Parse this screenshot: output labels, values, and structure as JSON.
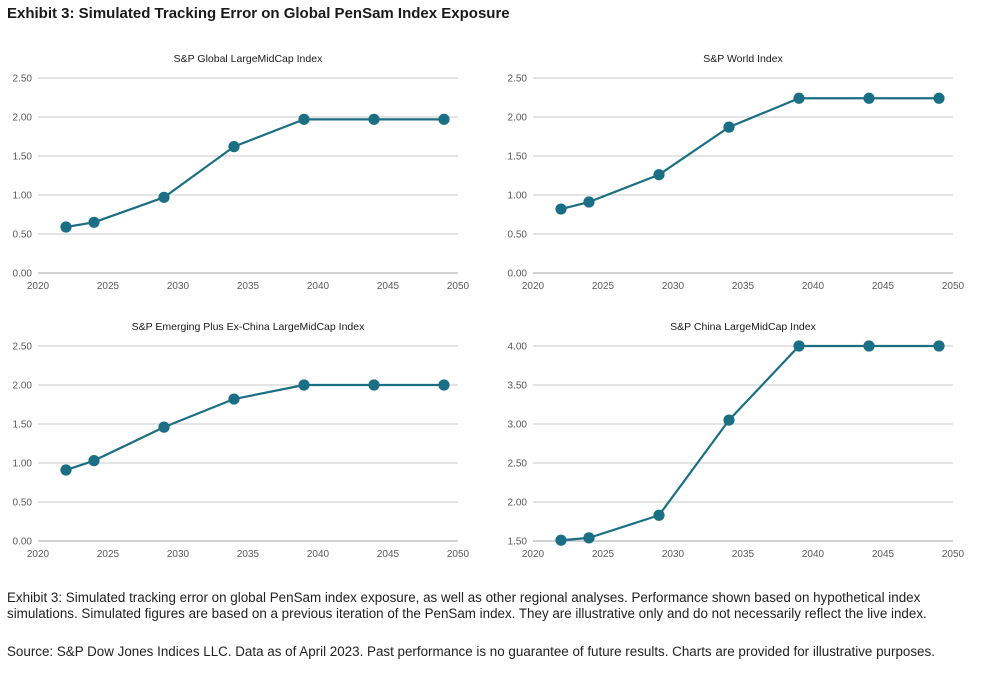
{
  "exhibit_title": "Exhibit 3: Simulated Tracking Error on Global PenSam Index Exposure",
  "caption": "Exhibit 3: Simulated tracking error on global PenSam index exposure, as well as other regional analyses. Performance shown based on hypothetical index simulations. Simulated figures are based on a previous iteration of the PenSam index. They are illustrative only and do not necessarily reflect the live index.",
  "source": "Source: S&P Dow Jones Indices LLC. Data as of April 2023. Past performance is no guarantee of future results. Charts are provided for illustrative purposes.",
  "colors": {
    "series": "#1b6f84",
    "grid": "#c8c8c8",
    "axis_text": "#595959"
  },
  "chart_data": [
    {
      "type": "line",
      "title": "S&P Global LargeMidCap Index",
      "x": [
        2022,
        2024,
        2029,
        2034,
        2039,
        2044,
        2049
      ],
      "y": [
        0.59,
        0.65,
        0.97,
        1.62,
        1.97,
        1.97,
        1.97
      ],
      "xticks": [
        2020,
        2025,
        2030,
        2035,
        2040,
        2045,
        2050
      ],
      "yticks": [
        "0.00",
        "0.50",
        "1.00",
        "1.50",
        "2.00",
        "2.50"
      ],
      "xlim": [
        2020,
        2050
      ],
      "ylim": [
        0,
        2.5
      ],
      "grid": true
    },
    {
      "type": "line",
      "title": "S&P  World Index",
      "x": [
        2022,
        2024,
        2029,
        2034,
        2039,
        2044,
        2049
      ],
      "y": [
        0.82,
        0.91,
        1.26,
        1.87,
        2.24,
        2.24,
        2.24
      ],
      "xticks": [
        2020,
        2025,
        2030,
        2035,
        2040,
        2045,
        2050
      ],
      "yticks": [
        "0.00",
        "0.50",
        "1.00",
        "1.50",
        "2.00",
        "2.50"
      ],
      "xlim": [
        2020,
        2050
      ],
      "ylim": [
        0,
        2.5
      ],
      "grid": true
    },
    {
      "type": "line",
      "title": "S&P Emerging Plus Ex-China LargeMidCap Index",
      "x": [
        2022,
        2024,
        2029,
        2034,
        2039,
        2044,
        2049
      ],
      "y": [
        0.91,
        1.03,
        1.46,
        1.82,
        2.0,
        2.0,
        2.0
      ],
      "xticks": [
        2020,
        2025,
        2030,
        2035,
        2040,
        2045,
        2050
      ],
      "yticks": [
        "0.00",
        "0.50",
        "1.00",
        "1.50",
        "2.00",
        "2.50"
      ],
      "xlim": [
        2020,
        2050
      ],
      "ylim": [
        0,
        2.5
      ],
      "grid": true
    },
    {
      "type": "line",
      "title": "S&P China LargeMidCap Index",
      "x": [
        2022,
        2024,
        2029,
        2034,
        2039,
        2044,
        2049
      ],
      "y": [
        1.51,
        1.54,
        1.83,
        3.05,
        4.0,
        4.0,
        4.0
      ],
      "xticks": [
        2020,
        2025,
        2030,
        2035,
        2040,
        2045,
        2050
      ],
      "yticks": [
        "1.50",
        "2.00",
        "2.50",
        "3.00",
        "3.50",
        "4.00"
      ],
      "xlim": [
        2020,
        2050
      ],
      "ylim": [
        1.5,
        4.0
      ],
      "grid": true
    }
  ]
}
